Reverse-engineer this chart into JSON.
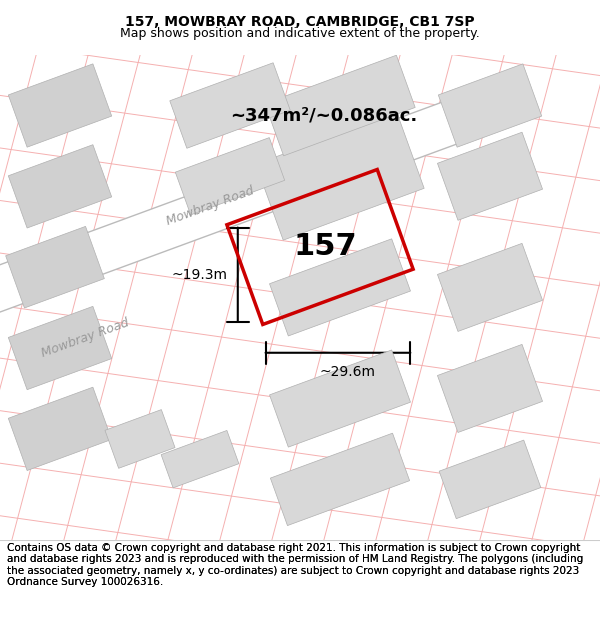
{
  "title": "157, MOWBRAY ROAD, CAMBRIDGE, CB1 7SP",
  "subtitle": "Map shows position and indicative extent of the property.",
  "footer": "Contains OS data © Crown copyright and database right 2021. This information is subject to Crown copyright and database rights 2023 and is reproduced with the permission of HM Land Registry. The polygons (including the associated geometry, namely x, y co-ordinates) are subject to Crown copyright and database rights 2023 Ordnance Survey 100026316.",
  "area_label": "~347m²/~0.086ac.",
  "number_label": "157",
  "dim_width": "~29.6m",
  "dim_height": "~19.3m",
  "road_label": "Mowbray Road",
  "road_label2": "Mowbray Road",
  "bg_color": "#ffffff",
  "map_bg": "#ffffff",
  "grid_color": "#f5c0c0",
  "building_color": "#d8d8d8",
  "road_color": "#e8e8e8",
  "highlight_color": "#cc0000",
  "title_fontsize": 10,
  "subtitle_fontsize": 9,
  "footer_fontsize": 7.5
}
